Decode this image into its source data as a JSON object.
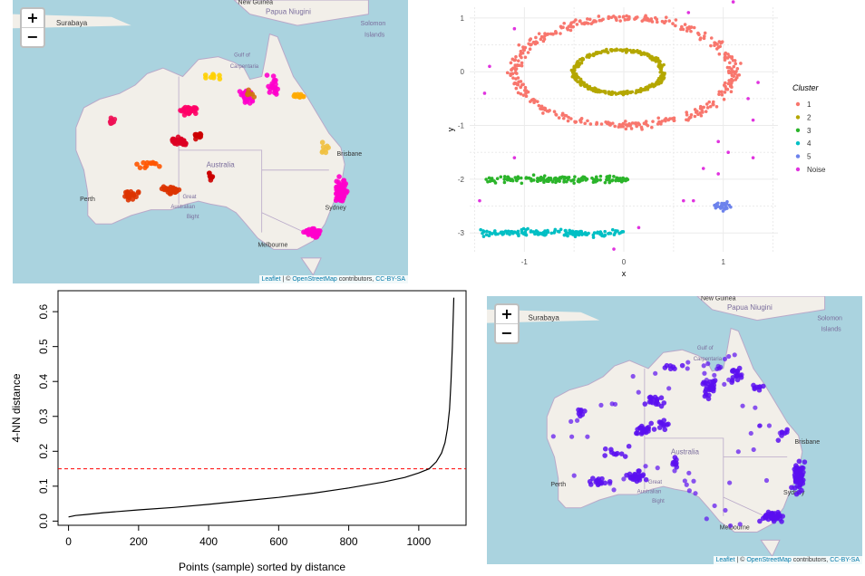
{
  "colors": {
    "ocean": "#aad3df",
    "land": "#f2efe9",
    "boundary": "#b9a9c9",
    "ocean_label": "#7a6d9c",
    "city_label": "#333333",
    "purple_point": "#5b0ff0",
    "threshold": "#ff0000"
  },
  "maps": {
    "zoom_in": "+",
    "zoom_out": "−",
    "attribution_leaflet": "Leaflet",
    "attribution_sep": " | © ",
    "attribution_osm": "OpenStreetMap",
    "attribution_contrib": " contributors, ",
    "attribution_license": "CC-BY-SA",
    "labels": {
      "surabaya": "Surabaya",
      "new_guinea": "New Guinea",
      "papua_niugini": "Papua Niugini",
      "solomon": "Solomon",
      "islands": "Islands",
      "gulf1": "Gulf of",
      "gulf2": "Carpentaria",
      "australia": "Australia",
      "perth": "Perth",
      "great": "Great",
      "australian": "Australian",
      "bight": "Bight",
      "brisbane": "Brisbane",
      "sydney": "Sydney",
      "melbourne": "Melbourne"
    }
  },
  "chart_data": [
    {
      "type": "scatter",
      "title": "",
      "xlabel": "x",
      "ylabel": "y",
      "xlim": [
        -1.55,
        1.55
      ],
      "ylim": [
        -3.35,
        1.2
      ],
      "xticks": [
        -1,
        0,
        1
      ],
      "yticks": [
        -3,
        -2,
        -1,
        0,
        1
      ],
      "grid": true,
      "legend_title": "Cluster",
      "legend_position": "right",
      "series": [
        {
          "name": "1",
          "color": "#f8766d",
          "shape": "ring",
          "center": [
            0,
            0
          ],
          "radius_x": 1.1,
          "radius_y": 1.0,
          "n": 400
        },
        {
          "name": "2",
          "color": "#b4a700",
          "shape": "ring",
          "center": [
            -0.05,
            0
          ],
          "radius_x": 0.45,
          "radius_y": 0.4,
          "n": 300
        },
        {
          "name": "3",
          "color": "#2bb42a",
          "shape": "band",
          "x_range": [
            -1.4,
            0.05
          ],
          "y_center": -2.0,
          "n": 150
        },
        {
          "name": "4",
          "color": "#00bfc4",
          "shape": "band",
          "x_range": [
            -1.45,
            0.0
          ],
          "y_center": -3.0,
          "n": 150
        },
        {
          "name": "5",
          "color": "#6c82ec",
          "shape": "blob",
          "center": [
            1.0,
            -2.5
          ],
          "n": 35
        },
        {
          "name": "Noise",
          "color": "#e033df",
          "shape": "points",
          "points": [
            [
              1.1,
              1.3
            ],
            [
              0.65,
              1.1
            ],
            [
              -1.1,
              0.8
            ],
            [
              -1.35,
              0.1
            ],
            [
              -1.4,
              -0.4
            ],
            [
              1.35,
              -0.2
            ],
            [
              1.3,
              -0.9
            ],
            [
              0.95,
              -1.3
            ],
            [
              1.05,
              -1.5
            ],
            [
              1.3,
              -1.6
            ],
            [
              -1.1,
              -1.6
            ],
            [
              0.8,
              -1.8
            ],
            [
              0.6,
              -2.4
            ],
            [
              -1.45,
              -2.4
            ],
            [
              0.15,
              -2.9
            ],
            [
              -0.1,
              -3.3
            ],
            [
              0.95,
              -1.9
            ],
            [
              1.25,
              -0.5
            ],
            [
              0.7,
              -2.4
            ]
          ]
        }
      ]
    },
    {
      "type": "line",
      "title": "",
      "xlabel": "Points (sample) sorted by distance",
      "ylabel": "4-NN distance",
      "xlim": [
        -30,
        1135
      ],
      "ylim": [
        -0.012,
        0.66
      ],
      "xticks": [
        0,
        200,
        400,
        600,
        800,
        1000
      ],
      "yticks": [
        0.0,
        0.1,
        0.2,
        0.3,
        0.4,
        0.5,
        0.6
      ],
      "threshold": 0.15,
      "threshold_style": "dashed red horizontal line",
      "series": [
        {
          "name": "",
          "x": [
            0,
            20,
            50,
            100,
            200,
            300,
            400,
            500,
            600,
            700,
            800,
            900,
            960,
            1000,
            1030,
            1050,
            1065,
            1075,
            1082,
            1088,
            1092,
            1096,
            1100
          ],
          "y": [
            0.012,
            0.016,
            0.019,
            0.024,
            0.032,
            0.039,
            0.048,
            0.058,
            0.068,
            0.08,
            0.095,
            0.112,
            0.125,
            0.138,
            0.15,
            0.17,
            0.195,
            0.225,
            0.265,
            0.32,
            0.4,
            0.5,
            0.64
          ]
        }
      ]
    }
  ]
}
